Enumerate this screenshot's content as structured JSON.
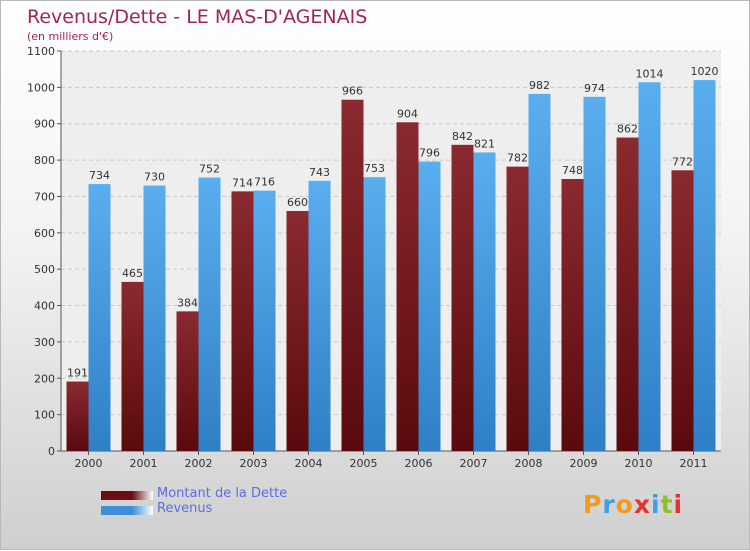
{
  "title": "Revenus/Dette - LE MAS-D'AGENAIS",
  "subtitle": "(en milliers d'€)",
  "chart_data": {
    "type": "bar",
    "categories": [
      "2000",
      "2001",
      "2002",
      "2003",
      "2004",
      "2005",
      "2006",
      "2007",
      "2008",
      "2009",
      "2010",
      "2011"
    ],
    "series": [
      {
        "name": "Montant de la Dette",
        "values": [
          191,
          465,
          384,
          714,
          660,
          966,
          904,
          842,
          782,
          748,
          862,
          772
        ],
        "color": "#7a1f24"
      },
      {
        "name": "Revenus",
        "values": [
          734,
          730,
          752,
          716,
          743,
          753,
          796,
          821,
          982,
          974,
          1014,
          1020
        ],
        "color": "#4ea3e6"
      }
    ],
    "ylim": [
      0,
      1100
    ],
    "yticks": [
      0,
      100,
      200,
      300,
      400,
      500,
      600,
      700,
      800,
      900,
      1000,
      1100
    ],
    "grid": true,
    "legend": "bottom-left"
  },
  "legend": {
    "items": [
      {
        "label": "Montant de la Dette",
        "color": "#6b0d12"
      },
      {
        "label": "Revenus",
        "color": "#3e8fd8"
      }
    ]
  },
  "logo": {
    "text": "Proxiti",
    "colors": [
      "#f29a1c",
      "#3e9ee0",
      "#f29a1c",
      "#e8312f",
      "#3e9ee0",
      "#8dbf2f",
      "#e8312f"
    ]
  }
}
